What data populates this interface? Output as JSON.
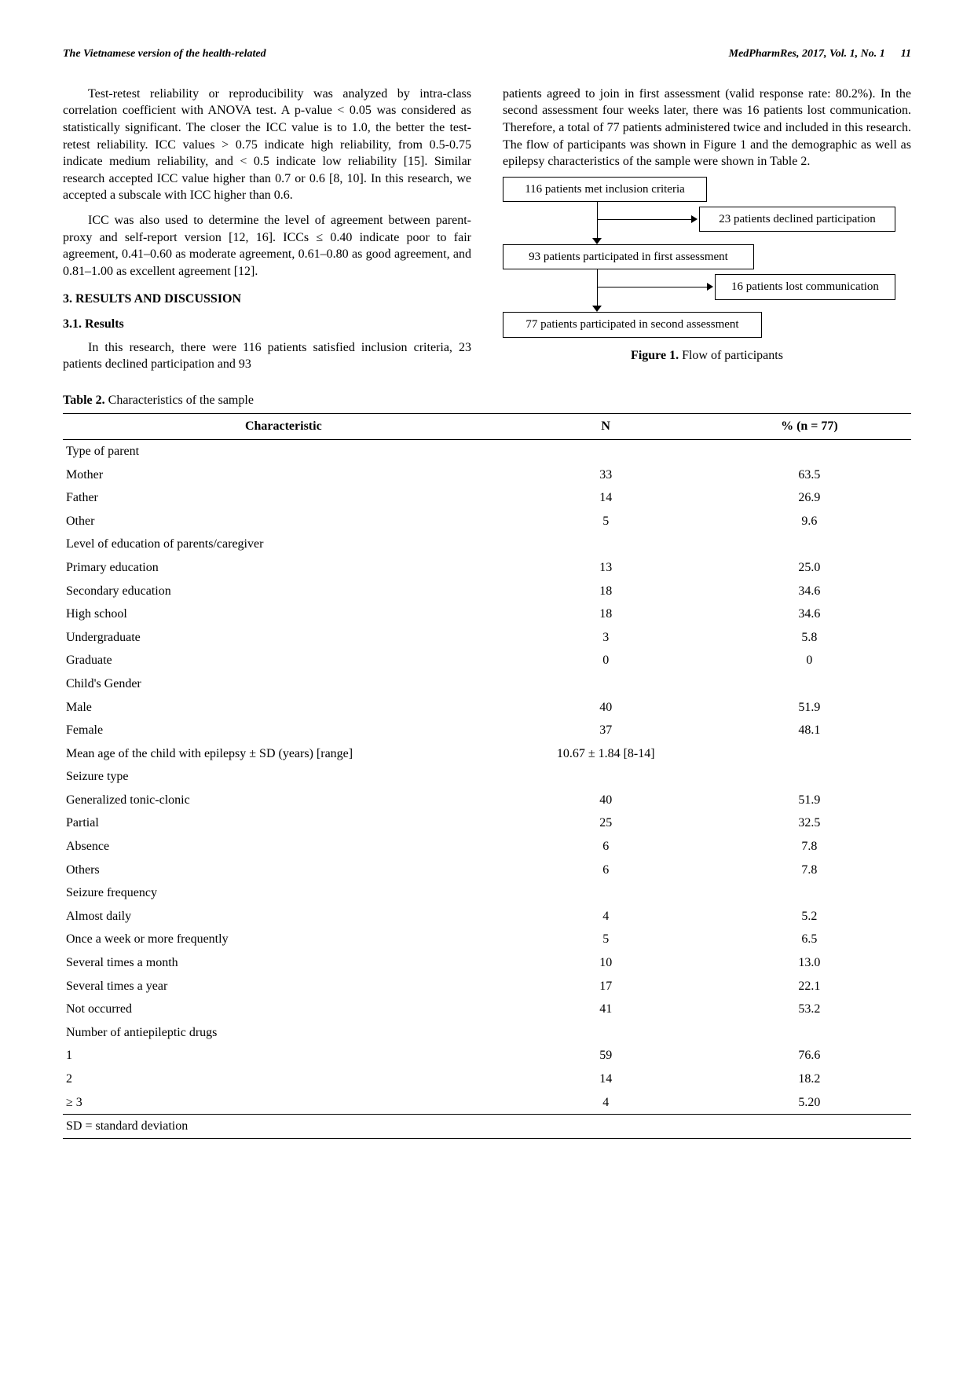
{
  "header": {
    "left": "The Vietnamese version of the health-related",
    "right_journal": "MedPharmRes, 2017, Vol. 1, No. 1",
    "page": "11"
  },
  "left_col": {
    "para1": "Test-retest reliability or reproducibility was analyzed by intra-class correlation coefficient with ANOVA test. A p-value < 0.05 was considered as statistically significant. The closer the ICC value is to 1.0, the better the test-retest reliability. ICC values > 0.75 indicate high reliability, from 0.5-0.75 indicate medium reliability, and < 0.5 indicate low reliability [15]. Similar research accepted ICC value higher than 0.7 or 0.6 [8, 10]. In this research, we accepted a subscale with ICC higher than 0.6.",
    "para2": "ICC was also used to determine the level of agreement between parent-proxy and self-report version [12, 16]. ICCs ≤ 0.40 indicate poor to fair agreement, 0.41–0.60 as moderate agreement, 0.61–0.80 as good agreement, and 0.81–1.00 as excellent agreement [12].",
    "section3": "3. RESULTS AND DISCUSSION",
    "section3_1": "3.1. Results",
    "para3": "In this research, there were 116 patients satisfied inclusion criteria, 23 patients declined participation and 93"
  },
  "right_col": {
    "para1": "patients agreed to join in first assessment (valid response rate: 80.2%). In the second assessment four weeks later, there was 16 patients lost communication. Therefore, a total of 77 patients administered twice and included in this research. The flow of participants was shown in Figure 1 and the demographic as well as epilepsy characteristics of the sample were shown in Table 2."
  },
  "flowchart": {
    "box1": "116 patients met inclusion criteria",
    "branch1": "23 patients declined participation",
    "box2": "93 patients participated in first assessment",
    "branch2": "16 patients lost communication",
    "box3": "77 patients participated in second assessment",
    "caption_label": "Figure 1.",
    "caption_text": " Flow of participants",
    "box_border_color": "#000000",
    "bg": "#ffffff"
  },
  "table": {
    "caption_label": "Table 2.",
    "caption_text": " Characteristics of the sample",
    "columns": [
      "Characteristic",
      "N",
      "% (n = 77)"
    ],
    "rows": [
      {
        "label": "Type of parent",
        "indent": 0,
        "n": "",
        "pct": ""
      },
      {
        "label": "Mother",
        "indent": 1,
        "n": "33",
        "pct": "63.5"
      },
      {
        "label": "Father",
        "indent": 1,
        "n": "14",
        "pct": "26.9"
      },
      {
        "label": "Other",
        "indent": 1,
        "n": "5",
        "pct": "9.6"
      },
      {
        "label": "Level of education of parents/caregiver",
        "indent": 0,
        "n": "",
        "pct": ""
      },
      {
        "label": "Primary education",
        "indent": 1,
        "n": "13",
        "pct": "25.0"
      },
      {
        "label": "Secondary education",
        "indent": 1,
        "n": "18",
        "pct": "34.6"
      },
      {
        "label": "High school",
        "indent": 1,
        "n": "18",
        "pct": "34.6"
      },
      {
        "label": "Undergraduate",
        "indent": 1,
        "n": "3",
        "pct": "5.8"
      },
      {
        "label": "Graduate",
        "indent": 1,
        "n": "0",
        "pct": "0"
      },
      {
        "label": "Child's Gender",
        "indent": 0,
        "n": "",
        "pct": ""
      },
      {
        "label": "Male",
        "indent": 1,
        "n": "40",
        "pct": "51.9"
      },
      {
        "label": "Female",
        "indent": 1,
        "n": "37",
        "pct": "48.1"
      },
      {
        "label": "Mean age of the child with epilepsy ± SD (years) [range]",
        "indent": 0,
        "n": "10.67 ± 1.84 [8-14]",
        "pct": ""
      },
      {
        "label": "Seizure type",
        "indent": 0,
        "n": "",
        "pct": ""
      },
      {
        "label": "Generalized tonic-clonic",
        "indent": 1,
        "n": "40",
        "pct": "51.9"
      },
      {
        "label": "Partial",
        "indent": 1,
        "n": "25",
        "pct": "32.5"
      },
      {
        "label": "Absence",
        "indent": 1,
        "n": "6",
        "pct": "7.8"
      },
      {
        "label": "Others",
        "indent": 1,
        "n": "6",
        "pct": "7.8"
      },
      {
        "label": "Seizure frequency",
        "indent": 0,
        "n": "",
        "pct": ""
      },
      {
        "label": "Almost daily",
        "indent": 1,
        "n": "4",
        "pct": "5.2"
      },
      {
        "label": "Once a week or more frequently",
        "indent": 1,
        "n": "5",
        "pct": "6.5"
      },
      {
        "label": "Several times a month",
        "indent": 1,
        "n": "10",
        "pct": "13.0"
      },
      {
        "label": "Several times a year",
        "indent": 1,
        "n": "17",
        "pct": "22.1"
      },
      {
        "label": "Not occurred",
        "indent": 1,
        "n": "41",
        "pct": "53.2"
      },
      {
        "label": "Number of antiepileptic drugs",
        "indent": 0,
        "n": "",
        "pct": ""
      },
      {
        "label": "1",
        "indent": 1,
        "n": "59",
        "pct": "76.6"
      },
      {
        "label": "2",
        "indent": 1,
        "n": "14",
        "pct": "18.2"
      },
      {
        "label": "≥ 3",
        "indent": 1,
        "n": "4",
        "pct": "5.20"
      }
    ],
    "footnote": "SD = standard deviation"
  }
}
